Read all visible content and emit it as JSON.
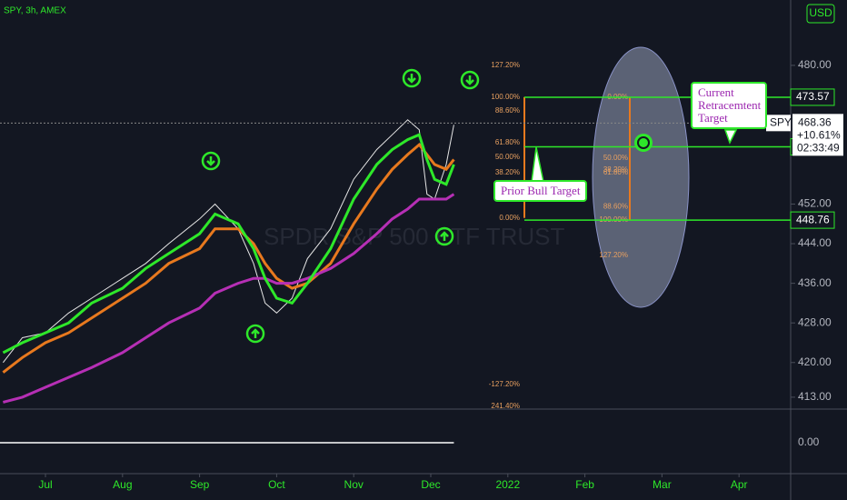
{
  "header": "SPY, 3h, AMEX",
  "currency": "USD",
  "watermark": "SPDR S&P 500 ETF TRUST",
  "chart_data": {
    "type": "line",
    "x": [
      6.45,
      6.7,
      7.0,
      7.3,
      7.6,
      8.0,
      8.3,
      8.6,
      9.0,
      9.2,
      9.5,
      9.7,
      9.85,
      10.0,
      10.2,
      10.4,
      10.7,
      11.0,
      11.3,
      11.5,
      11.7,
      11.85,
      11.95,
      12.05,
      12.2,
      12.3
    ],
    "series": [
      {
        "color": "#e6e6e6",
        "values": [
          420,
          425,
          426,
          430,
          433,
          437,
          440,
          444,
          449,
          452,
          447,
          440,
          432,
          430,
          433,
          441,
          447,
          457,
          463,
          466,
          469,
          467,
          454,
          453,
          460,
          468
        ]
      },
      {
        "color": "#e8791e",
        "values": [
          418,
          421,
          424,
          426,
          429,
          433,
          436,
          440,
          443,
          447,
          447,
          444,
          440,
          437,
          435,
          436,
          440,
          448,
          455,
          459,
          462,
          464,
          462,
          460,
          459,
          461
        ]
      },
      {
        "color": "#b62fb5",
        "values": [
          412,
          413,
          415,
          417,
          419,
          422,
          425,
          428,
          431,
          434,
          436,
          437,
          437,
          436,
          436,
          437,
          439,
          442,
          446,
          449,
          451,
          453,
          453,
          453,
          453,
          454
        ]
      },
      {
        "color": "#2ee82a",
        "values": [
          422,
          424,
          426,
          428,
          432,
          435,
          439,
          442,
          446,
          450,
          448,
          443,
          437,
          433,
          432,
          436,
          443,
          453,
          460,
          463,
          465,
          466,
          461,
          457,
          456,
          460
        ]
      }
    ],
    "xlim": [
      6.41,
      16.67
    ],
    "ylim": [
      410.6,
      493.2
    ],
    "xticks": [
      {
        "value": 7,
        "label": "Jul"
      },
      {
        "value": 8,
        "label": "Aug"
      },
      {
        "value": 9,
        "label": "Sep"
      },
      {
        "value": 10,
        "label": "Oct"
      },
      {
        "value": 11,
        "label": "Nov"
      },
      {
        "value": 12,
        "label": "Dec"
      },
      {
        "value": 13,
        "label": "2022"
      },
      {
        "value": 14,
        "label": "Feb"
      },
      {
        "value": 15,
        "label": "Mar"
      },
      {
        "value": 16,
        "label": "Apr"
      }
    ],
    "yticks": [
      {
        "value": 480,
        "label": "480.00"
      },
      {
        "value": 452,
        "label": "452.00"
      },
      {
        "value": 444,
        "label": "444.00"
      },
      {
        "value": 436,
        "label": "436.00"
      },
      {
        "value": 428,
        "label": "428.00"
      },
      {
        "value": 420,
        "label": "420.00"
      },
      {
        "value": 413,
        "label": "413.00"
      }
    ],
    "levels": [
      473.57,
      463.55,
      448.76
    ],
    "last_price": {
      "symbol": "SPY",
      "value": 468.36,
      "change": "+10.61%",
      "countdown": "02:33:49"
    },
    "fib_left": [
      {
        "label": "127.20%",
        "price": 480.0
      },
      {
        "label": "100.00%",
        "price": 473.6
      },
      {
        "label": "88.60%",
        "price": 470.8
      },
      {
        "label": "61.80%",
        "price": 464.4
      },
      {
        "label": "50.00%",
        "price": 461.5
      },
      {
        "label": "38.20%",
        "price": 458.3
      },
      {
        "label": "0.00%",
        "price": 449.2
      },
      {
        "label": "-127.20%",
        "price": 415.6
      },
      {
        "label": "241.40%",
        "price": 411.2
      }
    ],
    "fib_right": [
      {
        "label": "0.00%",
        "price": 473.6
      },
      {
        "label": "50.00%",
        "price": 461.3
      },
      {
        "label": "38.20%",
        "price": 458.9
      },
      {
        "label": "61.80%",
        "price": 458.3
      },
      {
        "label": "88.60%",
        "price": 451.5
      },
      {
        "label": "100.00%",
        "price": 448.8
      },
      {
        "label": "127.20%",
        "price": 441.6
      }
    ],
    "annotations": [
      "Prior Bull Target",
      "Current Retracemtent Target"
    ],
    "oscillator": {
      "ylim": [
        -1,
        1
      ],
      "yticks": [
        {
          "value": 0,
          "label": "0.00"
        }
      ]
    }
  }
}
